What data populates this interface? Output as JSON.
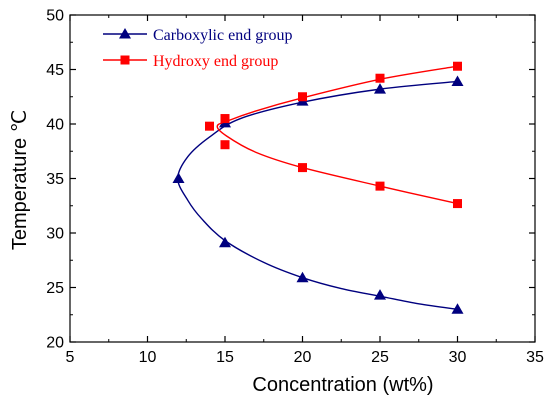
{
  "chart_data": {
    "type": "scatter",
    "xlabel": "Concentration (wt%)",
    "ylabel": "Temperature ℃",
    "xlim": [
      5,
      35
    ],
    "ylim": [
      20,
      50
    ],
    "xticks": [
      5,
      10,
      15,
      20,
      25,
      30,
      35
    ],
    "yticks": [
      20,
      25,
      30,
      35,
      40,
      45,
      50
    ],
    "grid": false,
    "legend": "top-left",
    "series": [
      {
        "name": "Carboxylic end group",
        "color": "#00007f",
        "marker": "triangle",
        "points": [
          [
            12,
            35.0
          ],
          [
            15,
            29.1
          ],
          [
            15,
            40.1
          ],
          [
            20,
            25.9
          ],
          [
            20,
            42.1
          ],
          [
            25,
            24.3
          ],
          [
            25,
            43.2
          ],
          [
            30,
            23.0
          ],
          [
            30,
            43.9
          ]
        ],
        "curve": [
          [
            30,
            43.9
          ],
          [
            25,
            43.2
          ],
          [
            20,
            42.0
          ],
          [
            16,
            40.5
          ],
          [
            14,
            38.8
          ],
          [
            12.6,
            37.0
          ],
          [
            11.95,
            35.0
          ],
          [
            12.6,
            33.0
          ],
          [
            13.5,
            31.3
          ],
          [
            15,
            29.3
          ],
          [
            17.5,
            27.3
          ],
          [
            20,
            25.9
          ],
          [
            22.5,
            24.9
          ],
          [
            25,
            24.2
          ],
          [
            27.5,
            23.5
          ],
          [
            30,
            23.0
          ]
        ]
      },
      {
        "name": "Hydroxy end group",
        "color": "#ff0000",
        "marker": "square",
        "points": [
          [
            14,
            39.8
          ],
          [
            15,
            38.1
          ],
          [
            15,
            40.5
          ],
          [
            20,
            36.0
          ],
          [
            20,
            42.5
          ],
          [
            25,
            34.3
          ],
          [
            25,
            44.2
          ],
          [
            30,
            32.7
          ],
          [
            30,
            45.3
          ]
        ],
        "curve": [
          [
            30,
            45.3
          ],
          [
            25,
            44.1
          ],
          [
            20,
            42.4
          ],
          [
            17,
            41.2
          ],
          [
            15.2,
            40.3
          ],
          [
            14.5,
            39.8
          ],
          [
            15.1,
            38.9
          ],
          [
            17,
            37.4
          ],
          [
            20,
            36.0
          ],
          [
            25,
            34.3
          ],
          [
            30,
            32.7
          ]
        ]
      }
    ]
  }
}
